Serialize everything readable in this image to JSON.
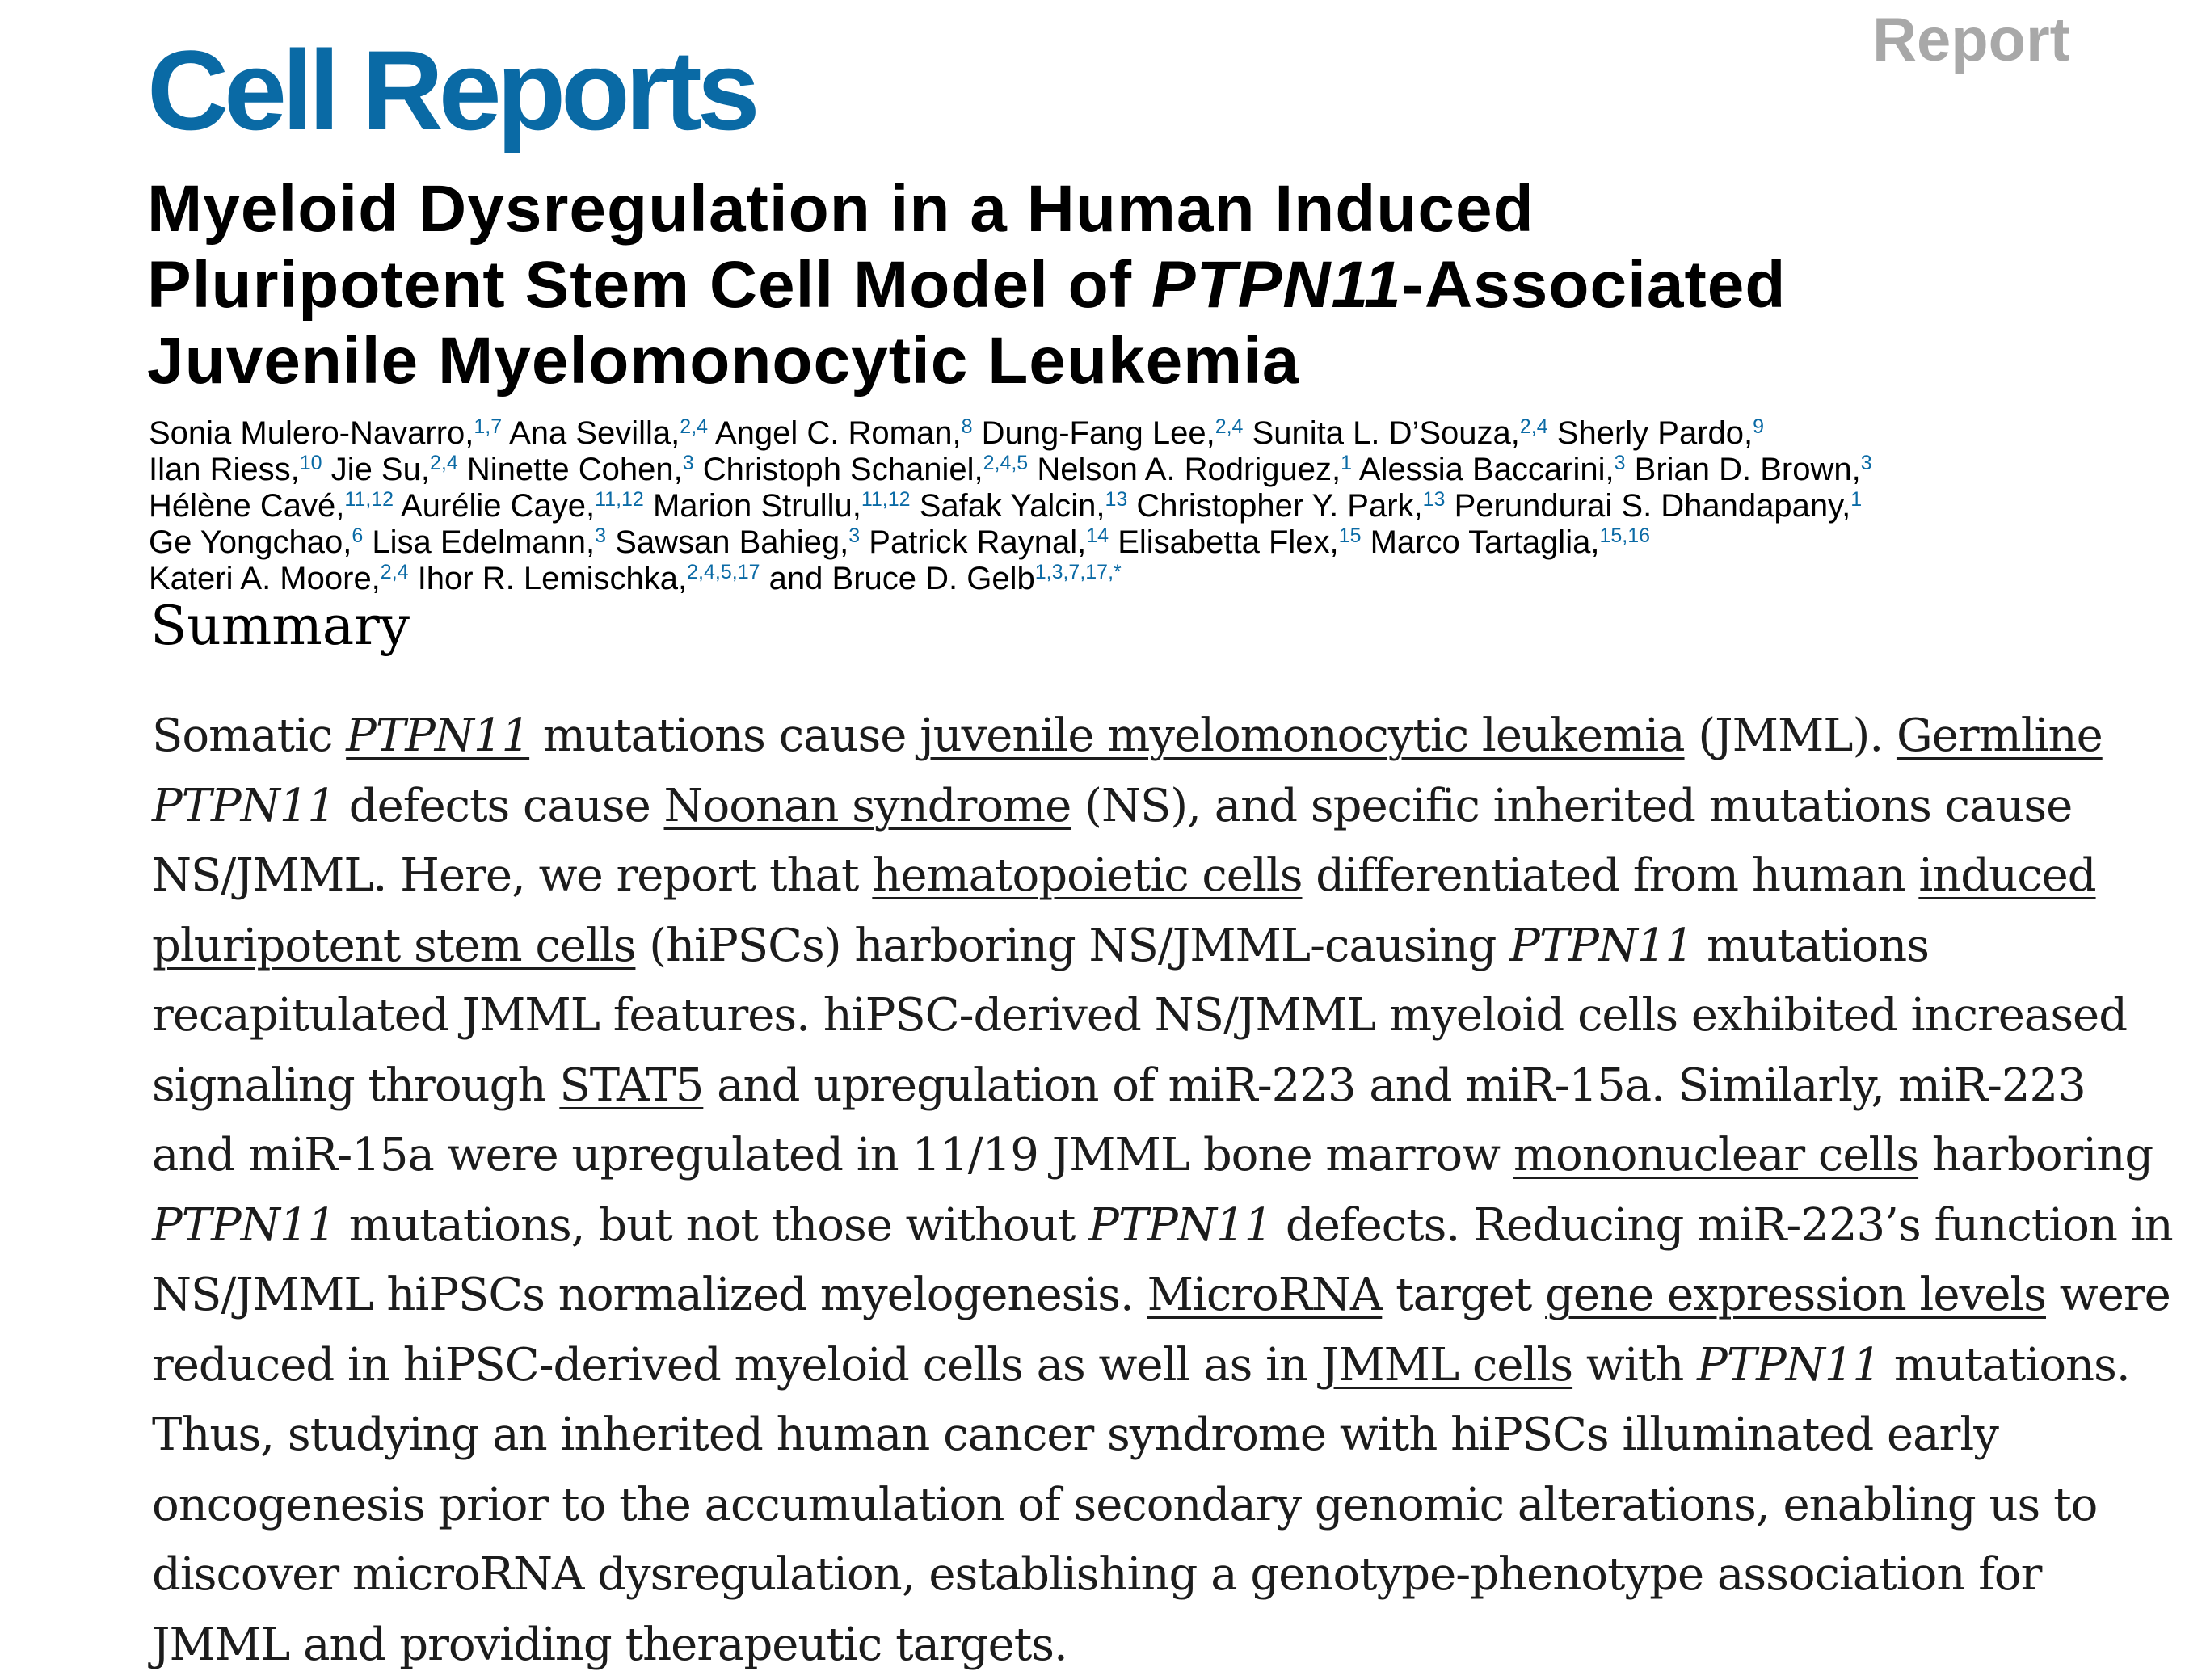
{
  "header": {
    "journal": "Cell Reports",
    "article_type": "Report"
  },
  "colors": {
    "journal_brand": "#0a6aa5",
    "article_type": "#a8a8a8"
  },
  "title": {
    "line1": "Myeloid Dysregulation in a Human Induced",
    "line2_before": "Pluripotent Stem Cell Model of ",
    "line2_gene": "PTPN11",
    "line2_after": "-Associated",
    "line3": "Juvenile Myelomonocytic Leukemia"
  },
  "authors": {
    "a1": {
      "name": "Sonia Mulero-Navarro,",
      "aff": "1,7"
    },
    "a2": {
      "name": "Ana Sevilla,",
      "aff": "2,4"
    },
    "a3": {
      "name": "Angel C. Roman,",
      "aff": "8"
    },
    "a4": {
      "name": "Dung-Fang Lee,",
      "aff": "2,4"
    },
    "a5": {
      "name": "Sunita L. D’Souza,",
      "aff": "2,4"
    },
    "a6": {
      "name": "Sherly Pardo,",
      "aff": "9"
    },
    "a7": {
      "name": "Ilan Riess,",
      "aff": "10"
    },
    "a8": {
      "name": "Jie Su,",
      "aff": "2,4"
    },
    "a9": {
      "name": "Ninette Cohen,",
      "aff": "3"
    },
    "a10": {
      "name": "Christoph Schaniel,",
      "aff": "2,4,5"
    },
    "a11": {
      "name": "Nelson A. Rodriguez,",
      "aff": "1"
    },
    "a12": {
      "name": "Alessia Baccarini,",
      "aff": "3"
    },
    "a13": {
      "name": "Brian D. Brown,",
      "aff": "3"
    },
    "a14": {
      "name": "Hélène Cavé,",
      "aff": "11,12"
    },
    "a15": {
      "name": "Aurélie Caye,",
      "aff": "11,12"
    },
    "a16": {
      "name": "Marion Strullu,",
      "aff": "11,12"
    },
    "a17": {
      "name": "Safak Yalcin,",
      "aff": "13"
    },
    "a18": {
      "name": "Christopher Y. Park,",
      "aff": "13"
    },
    "a19": {
      "name": "Perundurai S. Dhandapany,",
      "aff": "1"
    },
    "a20": {
      "name": "Ge Yongchao,",
      "aff": "6"
    },
    "a21": {
      "name": "Lisa Edelmann,",
      "aff": "3"
    },
    "a22": {
      "name": "Sawsan Bahieg,",
      "aff": "3"
    },
    "a23": {
      "name": "Patrick Raynal,",
      "aff": "14"
    },
    "a24": {
      "name": "Elisabetta Flex,",
      "aff": "15"
    },
    "a25": {
      "name": "Marco Tartaglia,",
      "aff": "15,16"
    },
    "a26": {
      "name": "Kateri A. Moore,",
      "aff": "2,4"
    },
    "a27": {
      "name": "Ihor R. Lemischka,",
      "aff": "2,4,5,17"
    },
    "a28_prefix": "and",
    "a28": {
      "name": "Bruce D. Gelb",
      "aff": "1,3,7,17,*"
    }
  },
  "summary": {
    "heading": "Summary",
    "l1": {
      "t1": "Somatic ",
      "k1": "PTPN11",
      "t2": " mutations cause ",
      "k2": "juvenile myelomonocytic leukemia",
      "t3": " (JMML). ",
      "k3": "Germline"
    },
    "l2": {
      "g1": "PTPN11",
      "t1": " defects cause ",
      "k1": "Noonan syndrome",
      "t2": " (NS), and specific inherited mutations cause"
    },
    "l3": {
      "t1": "NS/JMML. Here, we report that ",
      "k1": "hematopoietic cells",
      "t2": " differentiated from human ",
      "k2": "induced"
    },
    "l4": {
      "k1": "pluripotent stem cells",
      "t1": " (hiPSCs) harboring NS/JMML-causing ",
      "g1": "PTPN11",
      "t2": " mutations"
    },
    "l5": {
      "t1": "recapitulated JMML features. hiPSC-derived NS/JMML myeloid cells exhibited increased"
    },
    "l6": {
      "t1": "signaling through ",
      "k1": "STAT5",
      "t2": " and upregulation of miR-223 and miR-15a. Similarly, miR-223"
    },
    "l7": {
      "t1": "and miR-15a were upregulated in 11/19 JMML bone marrow ",
      "k1": "mononuclear cells",
      "t2": " harboring"
    },
    "l8": {
      "g1": "PTPN11",
      "t1": " mutations, but not those without ",
      "g2": "PTPN11",
      "t2": " defects. Reducing miR-223’s function in"
    },
    "l9": {
      "t1": "NS/JMML hiPSCs normalized myelogenesis. ",
      "k1": "MicroRNA",
      "t2": " target ",
      "k2": "gene expression levels",
      "t3": " were"
    },
    "l10": {
      "t1": "reduced in hiPSC-derived myeloid cells as well as in ",
      "k1": "JMML cells",
      "t2": " with ",
      "g1": "PTPN11",
      "t3": " mutations."
    },
    "l11": {
      "t1": "Thus, studying an inherited human cancer syndrome with hiPSCs illuminated early"
    },
    "l12": {
      "t1": "oncogenesis prior to the accumulation of secondary genomic alterations, enabling us to"
    },
    "l13": {
      "t1": "discover microRNA dysregulation, establishing a genotype-phenotype association for"
    },
    "l14": {
      "t1": "JMML and providing therapeutic targets."
    }
  }
}
